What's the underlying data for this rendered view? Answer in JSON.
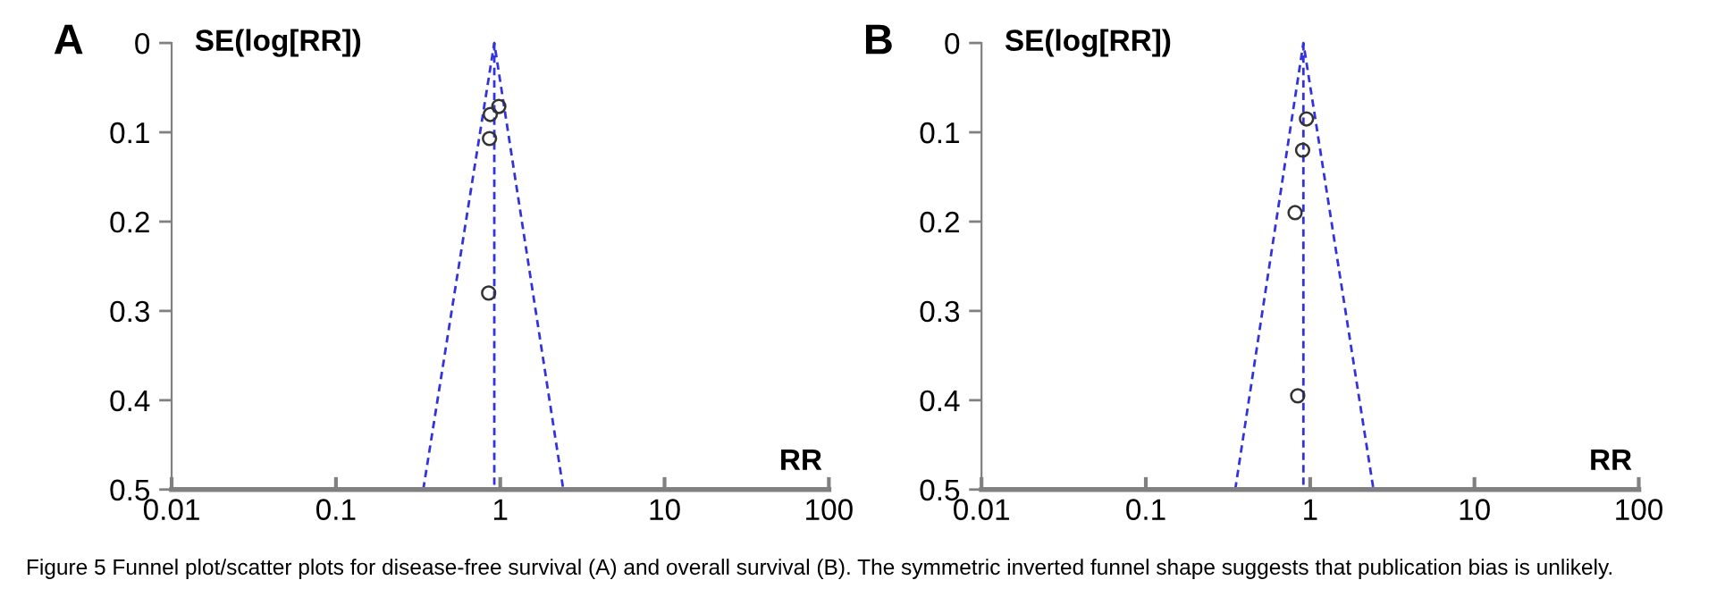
{
  "chart_data": [
    {
      "type": "scatter",
      "title": "A",
      "ylabel": "SE(log[RR])",
      "xlabel": "RR",
      "log": "x",
      "xlim": [
        0.01,
        100
      ],
      "xticks": [
        0.01,
        0.1,
        1,
        10,
        100
      ],
      "ylim": [
        0.5,
        0
      ],
      "yticks": [
        0,
        0.1,
        0.2,
        0.3,
        0.4,
        0.5
      ],
      "grid": false,
      "legend": false,
      "series": [
        {
          "color": "#333333",
          "marker": "circle",
          "x": [
            0.98,
            0.87,
            0.86,
            0.85
          ],
          "values": [
            0.071,
            0.08,
            0.107,
            0.28
          ]
        },
        {
          "type": "line",
          "color": "#3333dd",
          "line_style": "dashed",
          "marker": "none",
          "x": [
            0.92,
            0.92
          ],
          "values": [
            0,
            0.5
          ]
        },
        {
          "type": "line",
          "color": "#3333dd",
          "line_style": "dashed",
          "marker": "none",
          "x": [
            0.34,
            0.92,
            2.42
          ],
          "values": [
            0.5,
            0,
            0.5
          ]
        }
      ],
      "annotations": [
        "Figure 5 Funnel plot/scatter plots for disease-free survival (A) and overall survival (B). The symmetric inverted funnel shape suggests that publication bias is unlikely."
      ]
    },
    {
      "type": "scatter",
      "title": "B",
      "ylabel": "SE(log[RR])",
      "xlabel": "RR",
      "log": "x",
      "xlim": [
        0.01,
        100
      ],
      "xticks": [
        0.01,
        0.1,
        1,
        10,
        100
      ],
      "ylim": [
        0.5,
        0
      ],
      "yticks": [
        0,
        0.1,
        0.2,
        0.3,
        0.4,
        0.5
      ],
      "grid": false,
      "legend": false,
      "series": [
        {
          "color": "#333333",
          "marker": "circle",
          "x": [
            0.95,
            0.9,
            0.81,
            0.84
          ],
          "values": [
            0.085,
            0.12,
            0.19,
            0.395
          ]
        },
        {
          "type": "line",
          "color": "#3333dd",
          "line_style": "dashed",
          "marker": "none",
          "x": [
            0.91,
            0.91
          ],
          "values": [
            0,
            0.5
          ]
        },
        {
          "type": "line",
          "color": "#3333dd",
          "line_style": "dashed",
          "marker": "none",
          "x": [
            0.35,
            0.91,
            2.43
          ],
          "values": [
            0.5,
            0,
            0.5
          ]
        }
      ]
    }
  ]
}
